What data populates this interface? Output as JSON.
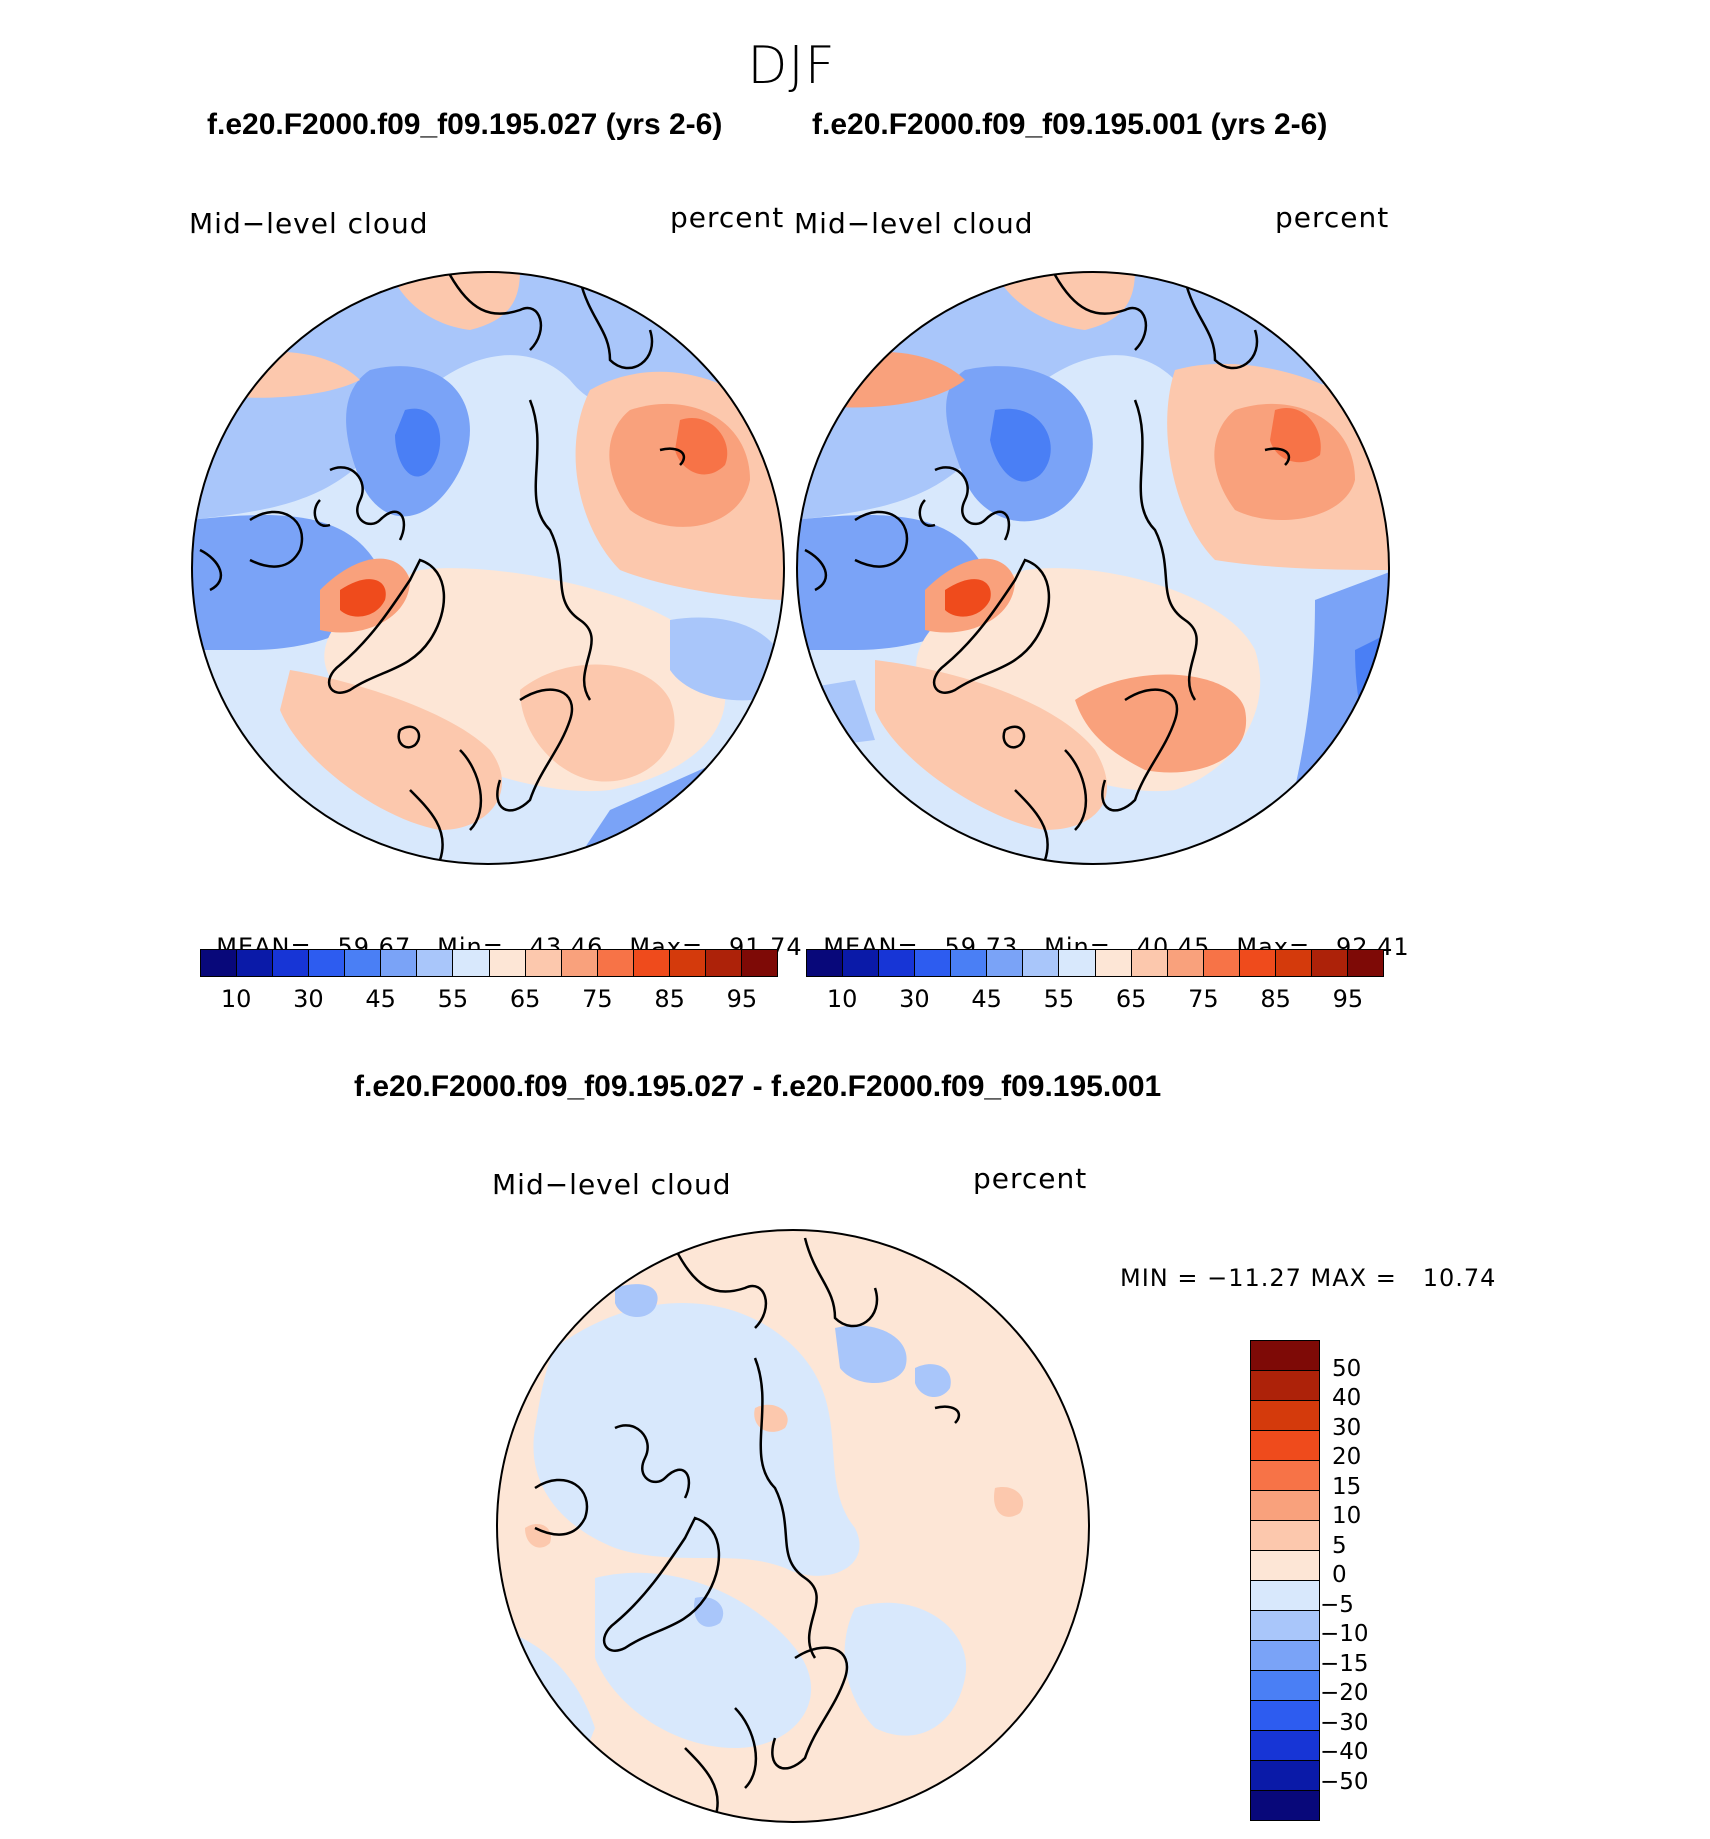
{
  "season": "DJF",
  "panels": {
    "left": {
      "case_title": "f.e20.F2000.f09_f09.195.027 (yrs 2-6)",
      "variable": "Mid−level cloud",
      "units": "percent",
      "stats": {
        "mean_label": "MEAN=",
        "mean": "59.67",
        "min_label": "Min=",
        "min": "43.46",
        "max_label": "Max=",
        "max": "91.74"
      }
    },
    "right": {
      "case_title": "f.e20.F2000.f09_f09.195.001 (yrs 2-6)",
      "variable": "Mid−level cloud",
      "units": "percent",
      "stats": {
        "mean_label": "MEAN=",
        "mean": "59.73",
        "min_label": "Min=",
        "min": "40.45",
        "max_label": "Max=",
        "max": "92.41"
      }
    },
    "diff": {
      "case_title": "f.e20.F2000.f09_f09.195.027 - f.e20.F2000.f09_f09.195.001",
      "variable": "Mid−level cloud",
      "units": "percent",
      "minmax": "MIN = −11.27 MAX =   10.74"
    }
  },
  "abs_colorbar": {
    "colors": [
      "#08087a",
      "#0a1aa8",
      "#1735d6",
      "#2d5cf0",
      "#4a7ff5",
      "#7aa3f7",
      "#a9c6fa",
      "#d8e8fc",
      "#fde6d6",
      "#fcc8ad",
      "#f9a17c",
      "#f77347",
      "#ef4b1c",
      "#d43a0c",
      "#ad2209",
      "#7e0a06"
    ],
    "tick_labels": [
      "10",
      "30",
      "45",
      "55",
      "65",
      "75",
      "85",
      "95"
    ]
  },
  "diff_colorbar": {
    "colors": [
      "#7e0a06",
      "#ad2209",
      "#d43a0c",
      "#ef4b1c",
      "#f77347",
      "#f9a17c",
      "#fcc8ad",
      "#fde6d6",
      "#d8e8fc",
      "#a9c6fa",
      "#7aa3f7",
      "#4a7ff5",
      "#2d5cf0",
      "#1735d6",
      "#0a1aa8",
      "#08087a"
    ],
    "tick_labels": [
      "50",
      "40",
      "30",
      "20",
      "15",
      "10",
      "5",
      "0",
      "−5",
      "−10",
      "−15",
      "−20",
      "−30",
      "−40",
      "−50"
    ]
  },
  "map_palette": {
    "ocean_base_blue": "#d8e8fc",
    "light_blue": "#a9c6fa",
    "mid_blue": "#7aa3f7",
    "deep_blue": "#4a7ff5",
    "peach": "#fde6d6",
    "salmon": "#fcc8ad",
    "orange": "#f9a17c",
    "red": "#f77347",
    "dark_red": "#ef4b1c",
    "deepest": "#d43a0c"
  }
}
